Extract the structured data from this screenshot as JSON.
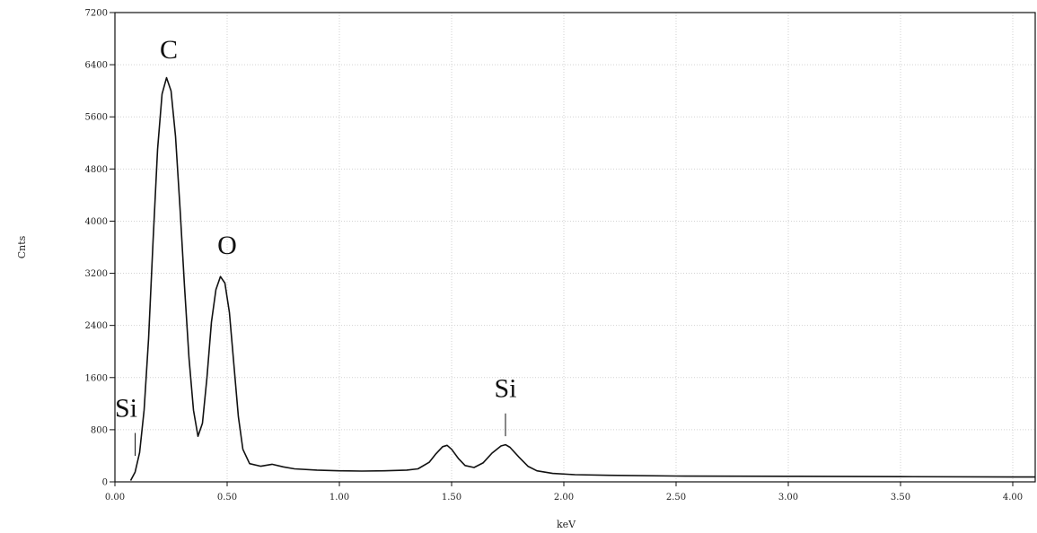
{
  "chart_data": {
    "type": "line",
    "title": "",
    "xlabel": "keV",
    "ylabel": "Cnts",
    "xlim": [
      0,
      4.1
    ],
    "ylim": [
      0,
      7200
    ],
    "x_ticks": [
      0,
      0.5,
      1.0,
      1.5,
      2.0,
      2.5,
      3.0,
      3.5,
      4.0
    ],
    "x_tick_labels": [
      "0.00",
      "0.50",
      "1.00",
      "1.50",
      "2.00",
      "2.50",
      "3.00",
      "3.50",
      "4.00"
    ],
    "y_ticks": [
      0,
      800,
      1600,
      2400,
      3200,
      4000,
      4800,
      5600,
      6400,
      7200
    ],
    "y_tick_labels": [
      "0",
      "800",
      "1600",
      "2400",
      "3200",
      "4000",
      "4800",
      "5600",
      "6400",
      "7200"
    ],
    "grid": true,
    "series": [
      {
        "x": [
          0.07,
          0.09,
          0.11,
          0.13,
          0.15,
          0.17,
          0.19,
          0.21,
          0.23,
          0.25,
          0.27,
          0.29,
          0.31,
          0.33,
          0.35,
          0.37,
          0.39,
          0.41,
          0.43,
          0.45,
          0.47,
          0.49,
          0.51,
          0.53,
          0.55,
          0.57,
          0.6,
          0.65,
          0.7,
          0.75,
          0.8,
          0.9,
          1.0,
          1.1,
          1.2,
          1.3,
          1.35,
          1.4,
          1.43,
          1.46,
          1.48,
          1.5,
          1.53,
          1.56,
          1.6,
          1.64,
          1.68,
          1.72,
          1.74,
          1.76,
          1.8,
          1.84,
          1.88,
          1.95,
          2.05,
          2.2,
          2.5,
          3.0,
          3.5,
          4.0,
          4.1
        ],
        "values": [
          20,
          150,
          450,
          1100,
          2200,
          3700,
          5100,
          5950,
          6200,
          6000,
          5300,
          4200,
          3000,
          1900,
          1100,
          700,
          900,
          1600,
          2450,
          2950,
          3150,
          3050,
          2600,
          1800,
          1000,
          500,
          280,
          240,
          270,
          230,
          200,
          180,
          170,
          165,
          170,
          180,
          200,
          300,
          430,
          540,
          560,
          500,
          360,
          250,
          220,
          290,
          440,
          550,
          570,
          530,
          380,
          240,
          170,
          130,
          110,
          100,
          90,
          85,
          80,
          75,
          75
        ]
      }
    ],
    "annotations": [
      {
        "text": "C",
        "x": 0.24,
        "y": 6500
      },
      {
        "text": "O",
        "x": 0.5,
        "y": 3500
      },
      {
        "text": "Si",
        "x": 1.74,
        "y": 1300,
        "marker_x": 1.74,
        "marker_from": 700,
        "marker_to": 1050
      },
      {
        "text": "Si",
        "x": 0.05,
        "y": 1000,
        "marker_x": 0.09,
        "marker_from": 400,
        "marker_to": 750
      }
    ]
  }
}
